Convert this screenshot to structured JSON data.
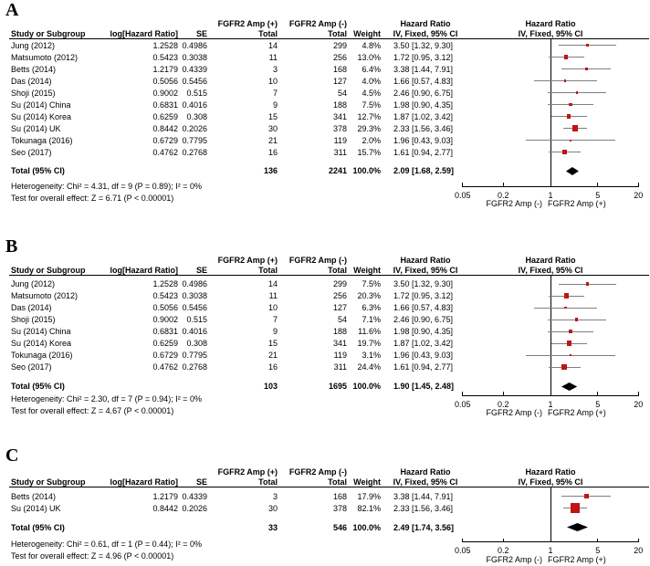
{
  "figure_colors": {
    "marker": "#C11414",
    "ci_line": "#7F7F7F",
    "diamond": "#000000",
    "axis": "#000000",
    "text": "#000000",
    "background": "#FFFFFF"
  },
  "column_headers": {
    "group_pos": "FGFR2 Amp (+)",
    "group_neg": "FGFR2 Amp (-)",
    "hazard_ratio": "Hazard Ratio",
    "study": "Study or Subgroup",
    "log_hr": "log[Hazard Ratio]",
    "se": "SE",
    "total": "Total",
    "weight": "Weight",
    "iv_fixed": "IV, Fixed, 95% CI"
  },
  "axis": {
    "ticks": [
      "0.05",
      "0.2",
      "1",
      "5",
      "20"
    ],
    "tick_values": [
      0.05,
      0.2,
      1,
      5,
      20
    ],
    "label_left": "FGFR2 Amp (-)",
    "label_right": "FGFR2 Amp (+)"
  },
  "chart_data": [
    {
      "type": "forest",
      "panel_label": "A",
      "x_scale": "log",
      "x_range": [
        0.05,
        20
      ],
      "studies": [
        {
          "study": "Jung (2012)",
          "log_hr": "1.2528",
          "se": "0.4986",
          "total_pos": "14",
          "total_neg": "299",
          "weight": "4.8%",
          "weight_pct": 4.8,
          "hr_ci": "3.50 [1.32, 9.30]",
          "hr": 3.5,
          "ci_low": 1.32,
          "ci_high": 9.3
        },
        {
          "study": "Matsumoto (2012)",
          "log_hr": "0.5423",
          "se": "0.3038",
          "total_pos": "11",
          "total_neg": "256",
          "weight": "13.0%",
          "weight_pct": 13.0,
          "hr_ci": "1.72 [0.95, 3.12]",
          "hr": 1.72,
          "ci_low": 0.95,
          "ci_high": 3.12
        },
        {
          "study": "Betts (2014)",
          "log_hr": "1.2179",
          "se": "0.4339",
          "total_pos": "3",
          "total_neg": "168",
          "weight": "6.4%",
          "weight_pct": 6.4,
          "hr_ci": "3.38 [1.44, 7.91]",
          "hr": 3.38,
          "ci_low": 1.44,
          "ci_high": 7.91
        },
        {
          "study": "Das (2014)",
          "log_hr": "0.5056",
          "se": "0.5456",
          "total_pos": "10",
          "total_neg": "127",
          "weight": "4.0%",
          "weight_pct": 4.0,
          "hr_ci": "1.66 [0.57, 4.83]",
          "hr": 1.66,
          "ci_low": 0.57,
          "ci_high": 4.83
        },
        {
          "study": "Shoji (2015)",
          "log_hr": "0.9002",
          "se": "0.515",
          "total_pos": "7",
          "total_neg": "54",
          "weight": "4.5%",
          "weight_pct": 4.5,
          "hr_ci": "2.46 [0.90, 6.75]",
          "hr": 2.46,
          "ci_low": 0.9,
          "ci_high": 6.75
        },
        {
          "study": "Su (2014) China",
          "log_hr": "0.6831",
          "se": "0.4016",
          "total_pos": "9",
          "total_neg": "188",
          "weight": "7.5%",
          "weight_pct": 7.5,
          "hr_ci": "1.98 [0.90, 4.35]",
          "hr": 1.98,
          "ci_low": 0.9,
          "ci_high": 4.35
        },
        {
          "study": "Su (2014) Korea",
          "log_hr": "0.6259",
          "se": "0.308",
          "total_pos": "15",
          "total_neg": "341",
          "weight": "12.7%",
          "weight_pct": 12.7,
          "hr_ci": "1.87 [1.02, 3.42]",
          "hr": 1.87,
          "ci_low": 1.02,
          "ci_high": 3.42
        },
        {
          "study": "Su (2014) UK",
          "log_hr": "0.8442",
          "se": "0.2026",
          "total_pos": "30",
          "total_neg": "378",
          "weight": "29.3%",
          "weight_pct": 29.3,
          "hr_ci": "2.33 [1.56, 3.46]",
          "hr": 2.33,
          "ci_low": 1.56,
          "ci_high": 3.46
        },
        {
          "study": "Tokunaga (2016)",
          "log_hr": "0.6729",
          "se": "0.7795",
          "total_pos": "21",
          "total_neg": "119",
          "weight": "2.0%",
          "weight_pct": 2.0,
          "hr_ci": "1.96 [0.43, 9.03]",
          "hr": 1.96,
          "ci_low": 0.43,
          "ci_high": 9.03
        },
        {
          "study": "Seo (2017)",
          "log_hr": "0.4762",
          "se": "0.2768",
          "total_pos": "16",
          "total_neg": "311",
          "weight": "15.7%",
          "weight_pct": 15.7,
          "hr_ci": "1.61 [0.94, 2.77]",
          "hr": 1.61,
          "ci_low": 0.94,
          "ci_high": 2.77
        }
      ],
      "total": {
        "label": "Total (95% CI)",
        "total_pos": "136",
        "total_neg": "2241",
        "weight": "100.0%",
        "hr_ci": "2.09 [1.68, 2.59]",
        "hr": 2.09,
        "ci_low": 1.68,
        "ci_high": 2.59
      },
      "heterogeneity": "Heterogeneity: Chi² = 4.31, df = 9 (P = 0.89); I² = 0%",
      "overall_effect": "Test for overall effect: Z = 6.71 (P < 0.00001)"
    },
    {
      "type": "forest",
      "panel_label": "B",
      "x_scale": "log",
      "x_range": [
        0.05,
        20
      ],
      "studies": [
        {
          "study": "Jung (2012)",
          "log_hr": "1.2528",
          "se": "0.4986",
          "total_pos": "14",
          "total_neg": "299",
          "weight": "7.5%",
          "weight_pct": 7.5,
          "hr_ci": "3.50 [1.32, 9.30]",
          "hr": 3.5,
          "ci_low": 1.32,
          "ci_high": 9.3
        },
        {
          "study": "Matsumoto (2012)",
          "log_hr": "0.5423",
          "se": "0.3038",
          "total_pos": "11",
          "total_neg": "256",
          "weight": "20.3%",
          "weight_pct": 20.3,
          "hr_ci": "1.72 [0.95, 3.12]",
          "hr": 1.72,
          "ci_low": 0.95,
          "ci_high": 3.12
        },
        {
          "study": "Das (2014)",
          "log_hr": "0.5056",
          "se": "0.5456",
          "total_pos": "10",
          "total_neg": "127",
          "weight": "6.3%",
          "weight_pct": 6.3,
          "hr_ci": "1.66 [0.57, 4.83]",
          "hr": 1.66,
          "ci_low": 0.57,
          "ci_high": 4.83
        },
        {
          "study": "Shoji (2015)",
          "log_hr": "0.9002",
          "se": "0.515",
          "total_pos": "7",
          "total_neg": "54",
          "weight": "7.1%",
          "weight_pct": 7.1,
          "hr_ci": "2.46 [0.90, 6.75]",
          "hr": 2.46,
          "ci_low": 0.9,
          "ci_high": 6.75
        },
        {
          "study": "Su (2014) China",
          "log_hr": "0.6831",
          "se": "0.4016",
          "total_pos": "9",
          "total_neg": "188",
          "weight": "11.6%",
          "weight_pct": 11.6,
          "hr_ci": "1.98 [0.90, 4.35]",
          "hr": 1.98,
          "ci_low": 0.9,
          "ci_high": 4.35
        },
        {
          "study": "Su (2014) Korea",
          "log_hr": "0.6259",
          "se": "0.308",
          "total_pos": "15",
          "total_neg": "341",
          "weight": "19.7%",
          "weight_pct": 19.7,
          "hr_ci": "1.87 [1.02, 3.42]",
          "hr": 1.87,
          "ci_low": 1.02,
          "ci_high": 3.42
        },
        {
          "study": "Tokunaga (2016)",
          "log_hr": "0.6729",
          "se": "0.7795",
          "total_pos": "21",
          "total_neg": "119",
          "weight": "3.1%",
          "weight_pct": 3.1,
          "hr_ci": "1.96 [0.43, 9.03]",
          "hr": 1.96,
          "ci_low": 0.43,
          "ci_high": 9.03
        },
        {
          "study": "Seo (2017)",
          "log_hr": "0.4762",
          "se": "0.2768",
          "total_pos": "16",
          "total_neg": "311",
          "weight": "24.4%",
          "weight_pct": 24.4,
          "hr_ci": "1.61 [0.94, 2.77]",
          "hr": 1.61,
          "ci_low": 0.94,
          "ci_high": 2.77
        }
      ],
      "total": {
        "label": "Total (95% CI)",
        "total_pos": "103",
        "total_neg": "1695",
        "weight": "100.0%",
        "hr_ci": "1.90 [1.45, 2.48]",
        "hr": 1.9,
        "ci_low": 1.45,
        "ci_high": 2.48
      },
      "heterogeneity": "Heterogeneity: Chi² = 2.30, df = 7 (P = 0.94); I² = 0%",
      "overall_effect": "Test for overall effect: Z = 4.67 (P < 0.00001)"
    },
    {
      "type": "forest",
      "panel_label": "C",
      "x_scale": "log",
      "x_range": [
        0.05,
        20
      ],
      "studies": [
        {
          "study": "Betts (2014)",
          "log_hr": "1.2179",
          "se": "0.4339",
          "total_pos": "3",
          "total_neg": "168",
          "weight": "17.9%",
          "weight_pct": 17.9,
          "hr_ci": "3.38 [1.44, 7.91]",
          "hr": 3.38,
          "ci_low": 1.44,
          "ci_high": 7.91
        },
        {
          "study": "Su (2014) UK",
          "log_hr": "0.8442",
          "se": "0.2026",
          "total_pos": "30",
          "total_neg": "378",
          "weight": "82.1%",
          "weight_pct": 82.1,
          "hr_ci": "2.33 [1.56, 3.46]",
          "hr": 2.33,
          "ci_low": 1.56,
          "ci_high": 3.46
        }
      ],
      "total": {
        "label": "Total (95% CI)",
        "total_pos": "33",
        "total_neg": "546",
        "weight": "100.0%",
        "hr_ci": "2.49 [1.74, 3.56]",
        "hr": 2.49,
        "ci_low": 1.74,
        "ci_high": 3.56
      },
      "heterogeneity": "Heterogeneity: Chi² = 0.61, df = 1 (P = 0.44); I² = 0%",
      "overall_effect": "Test for overall effect: Z = 4.96 (P < 0.00001)"
    }
  ]
}
